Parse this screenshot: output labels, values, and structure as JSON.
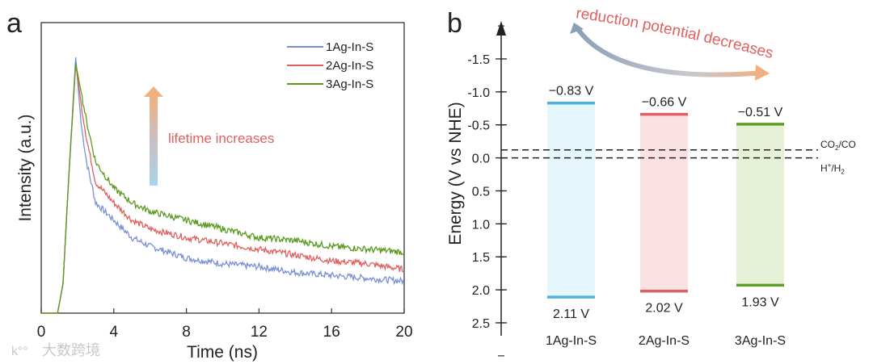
{
  "watermark": "大数跨境",
  "chart_data": [
    {
      "panel_label": "a",
      "type": "line",
      "xlabel": "Time (ns)",
      "ylabel": "Intensity (a.u.)",
      "xlim": [
        0,
        20
      ],
      "ylim": [
        0,
        1
      ],
      "xticks": [
        "0",
        "4",
        "8",
        "12",
        "16",
        "20"
      ],
      "legend_position": "top-right",
      "annotation": "lifetime increases",
      "x": [
        0,
        0.9,
        1.2,
        1.5,
        1.9,
        2.2,
        2.5,
        3,
        4,
        5,
        6,
        8,
        10,
        12,
        14,
        16,
        18,
        20
      ],
      "series": [
        {
          "name": "1Ag-In-S",
          "color": "#7b8fd6",
          "values": [
            0,
            0,
            0.1,
            0.45,
            0.88,
            0.65,
            0.52,
            0.38,
            0.32,
            0.26,
            0.23,
            0.19,
            0.17,
            0.16,
            0.14,
            0.13,
            0.12,
            0.11
          ]
        },
        {
          "name": "2Ag-In-S",
          "color": "#e0605e",
          "values": [
            0,
            0,
            0.1,
            0.45,
            0.86,
            0.72,
            0.6,
            0.45,
            0.38,
            0.32,
            0.29,
            0.26,
            0.24,
            0.22,
            0.2,
            0.18,
            0.17,
            0.15
          ]
        },
        {
          "name": "3Ag-In-S",
          "color": "#5a9a1e",
          "values": [
            0,
            0,
            0.1,
            0.45,
            0.86,
            0.76,
            0.66,
            0.52,
            0.43,
            0.38,
            0.35,
            0.32,
            0.29,
            0.26,
            0.25,
            0.23,
            0.22,
            0.21
          ]
        }
      ]
    },
    {
      "panel_label": "b",
      "type": "bar",
      "ylabel": "Energy (V vs NHE)",
      "ylim": [
        -1.8,
        2.6
      ],
      "yticks": [
        "-1.5",
        "-1.0",
        "-0.5",
        "0.0",
        "0.5",
        "1.0",
        "1.5",
        "2.0",
        "2.5"
      ],
      "ytick_values": [
        -1.5,
        -1.0,
        -0.5,
        0.0,
        0.5,
        1.0,
        1.5,
        2.0,
        2.5
      ],
      "annotation": "reduction potential decreases",
      "categories": [
        "1Ag-In-S",
        "2Ag-In-S",
        "3Ag-In-S"
      ],
      "bands": [
        {
          "name": "1Ag-In-S",
          "cb": -0.83,
          "vb": 2.11,
          "cb_label": "−0.83 V",
          "vb_label": "2.11 V",
          "color": "#4fb3e0",
          "fill": "#e6f6fd"
        },
        {
          "name": "2Ag-In-S",
          "cb": -0.66,
          "vb": 2.02,
          "cb_label": "−0.66 V",
          "vb_label": "2.02 V",
          "color": "#e06068",
          "fill": "#fbe1e2"
        },
        {
          "name": "3Ag-In-S",
          "cb": -0.51,
          "vb": 1.93,
          "cb_label": "−0.51 V",
          "vb_label": "1.93 V",
          "color": "#5f9e22",
          "fill": "#e5f0d6"
        }
      ],
      "reference_lines": [
        {
          "label_main": "CO",
          "label_sub": "2",
          "label_rest": "/CO",
          "value": -0.12
        },
        {
          "label_main": "H",
          "label_sup": "+",
          "label_rest": "/H",
          "label_sub": "2",
          "value": 0.0
        }
      ]
    }
  ]
}
